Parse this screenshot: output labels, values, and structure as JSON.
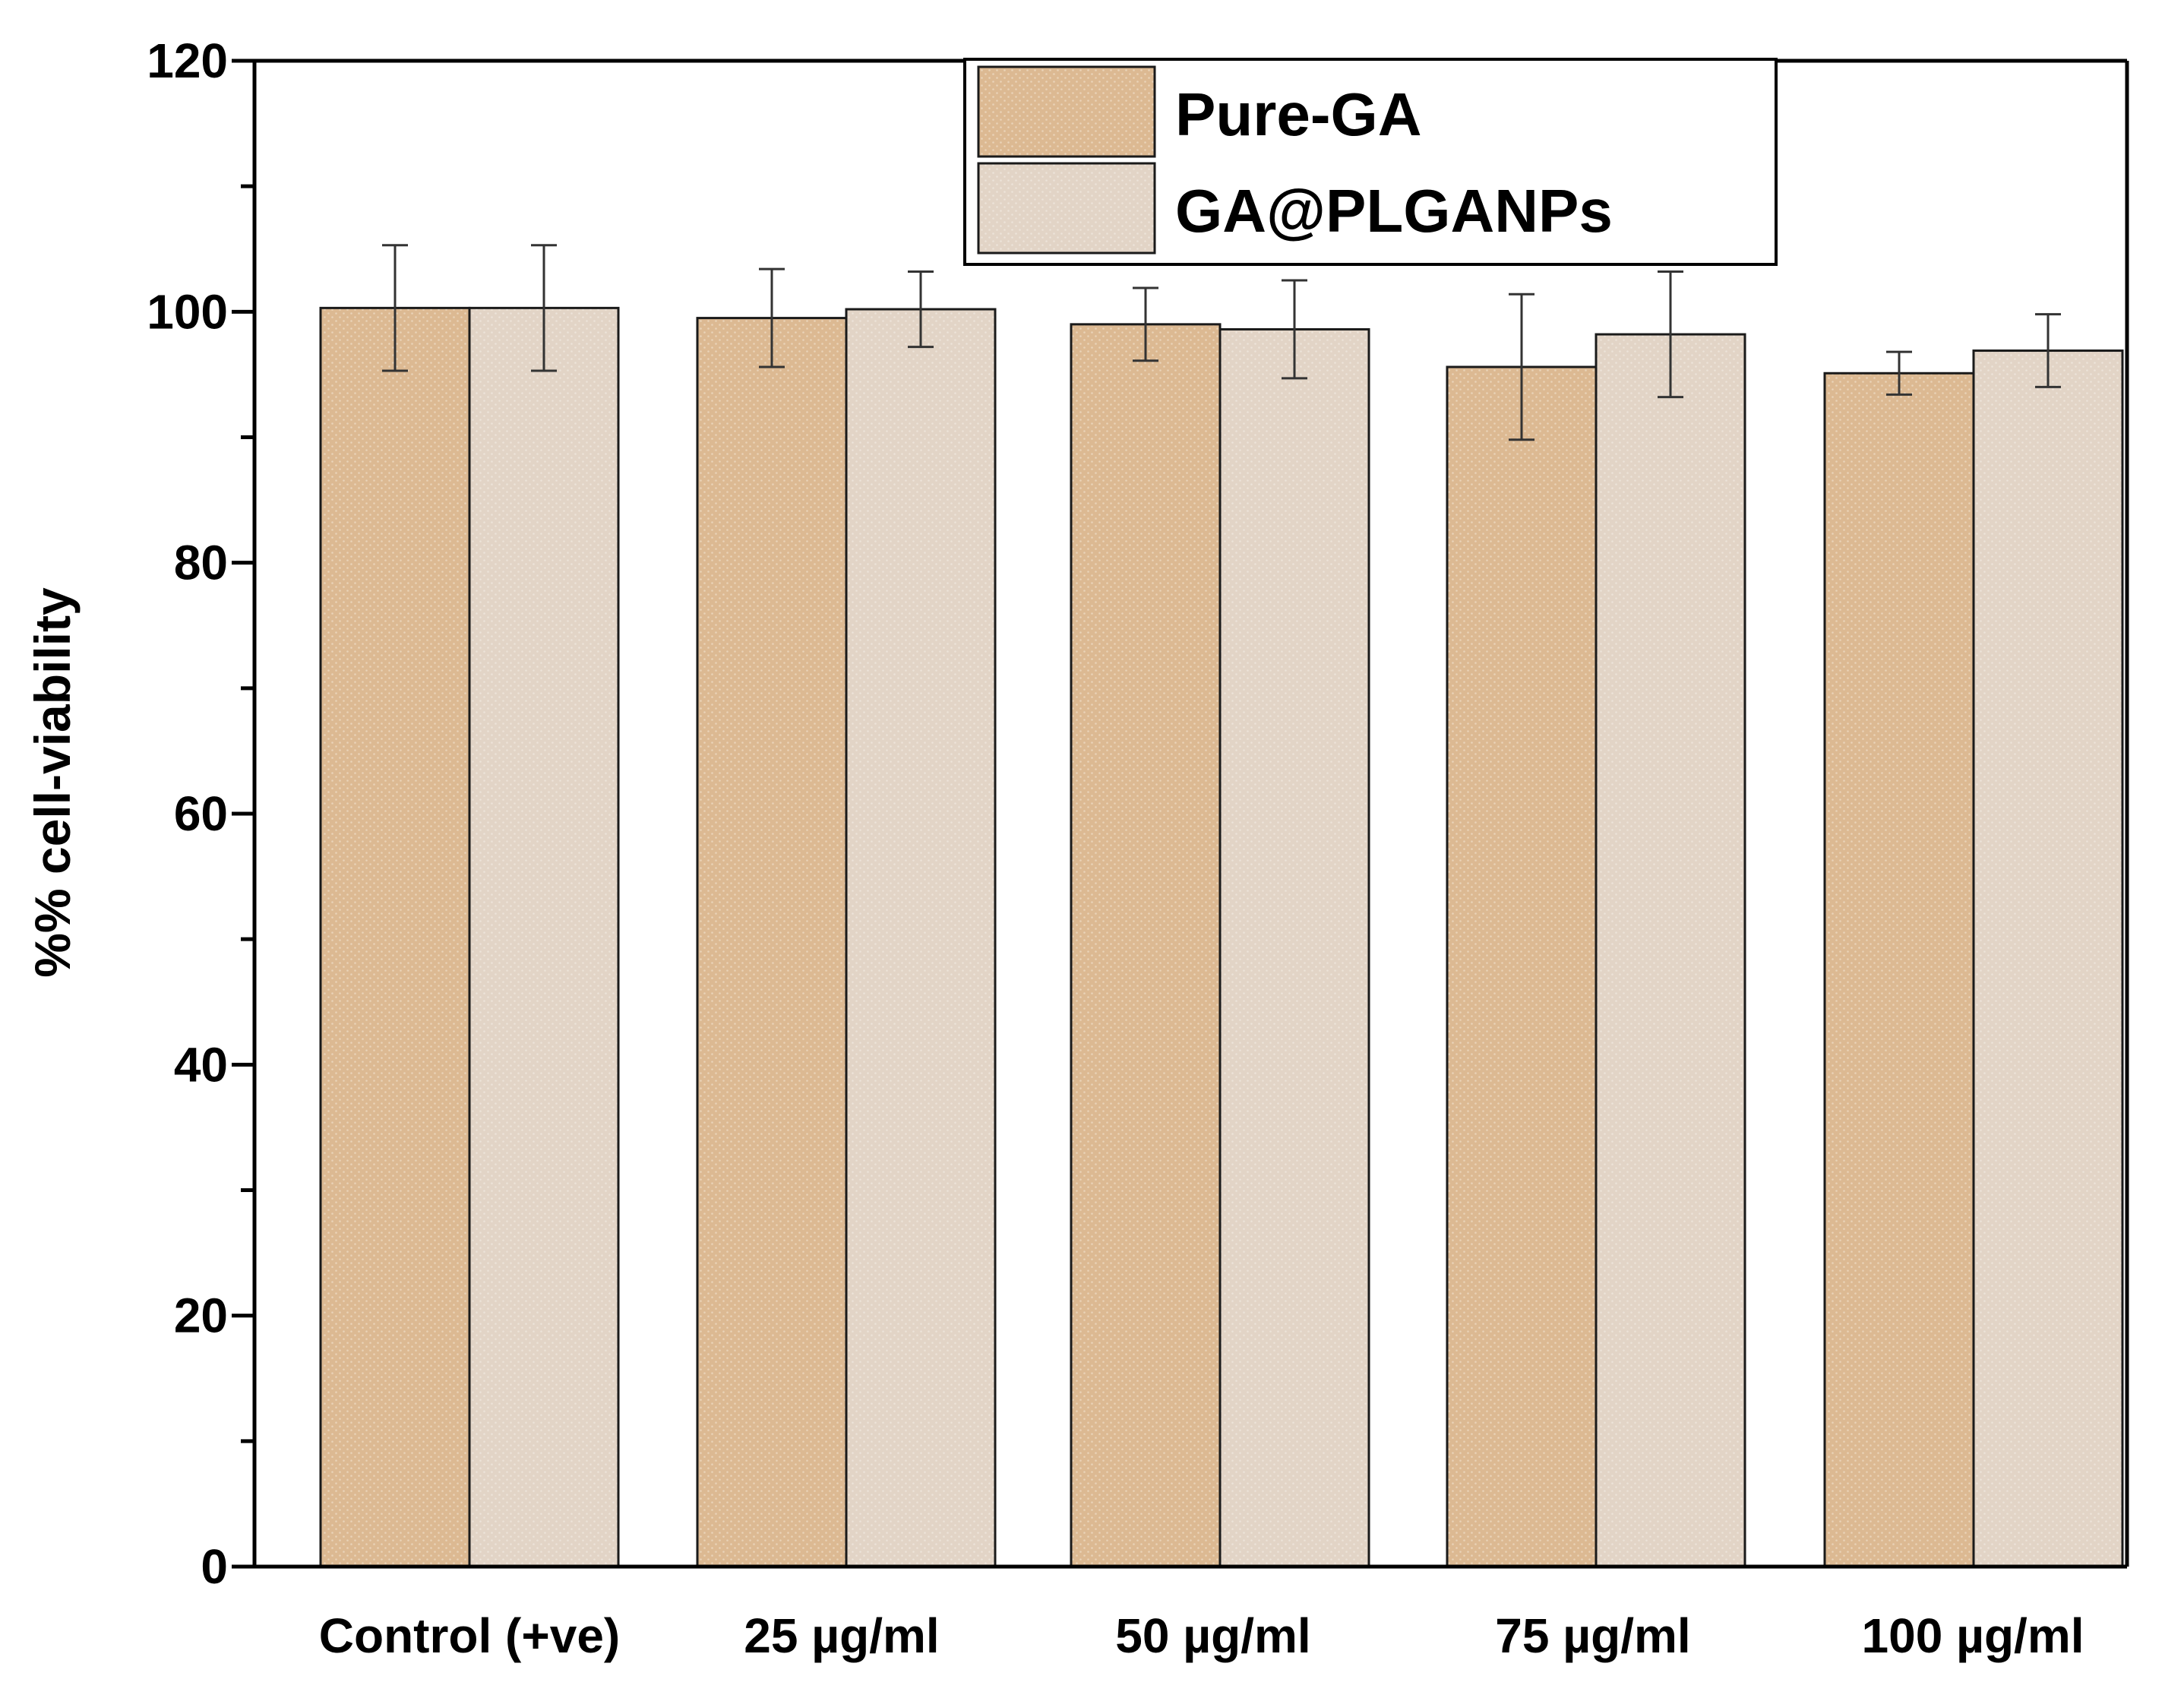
{
  "colors": {
    "background": "#ffffff",
    "axis": "#000000",
    "pure_ga": "#dcb992",
    "ga_plga": "#e2d4c6",
    "errorbar": "#333333"
  },
  "chart_data": {
    "type": "bar",
    "title": "",
    "xlabel": "",
    "ylabel": "%% cell-viability",
    "ylim": [
      0,
      120
    ],
    "yticks": [
      0,
      20,
      40,
      60,
      80,
      100,
      120
    ],
    "y_minor_step": 10,
    "grid": false,
    "legend_position": "top-center",
    "categories": [
      "Control (+ve)",
      "25 µg/ml",
      "50 µg/ml",
      "75 µg/ml",
      "100 µg/ml"
    ],
    "series": [
      {
        "name": "Pure-GA",
        "color_key": "pure_ga",
        "values": [
          100.3,
          99.5,
          99.0,
          95.6,
          95.1
        ],
        "errors": [
          5.0,
          3.9,
          2.9,
          5.8,
          1.7
        ]
      },
      {
        "name": "GA@PLGANPs",
        "color_key": "ga_plga",
        "values": [
          100.3,
          100.2,
          98.6,
          98.2,
          96.9
        ],
        "errors": [
          5.0,
          3.0,
          3.9,
          5.0,
          2.9
        ]
      }
    ]
  }
}
